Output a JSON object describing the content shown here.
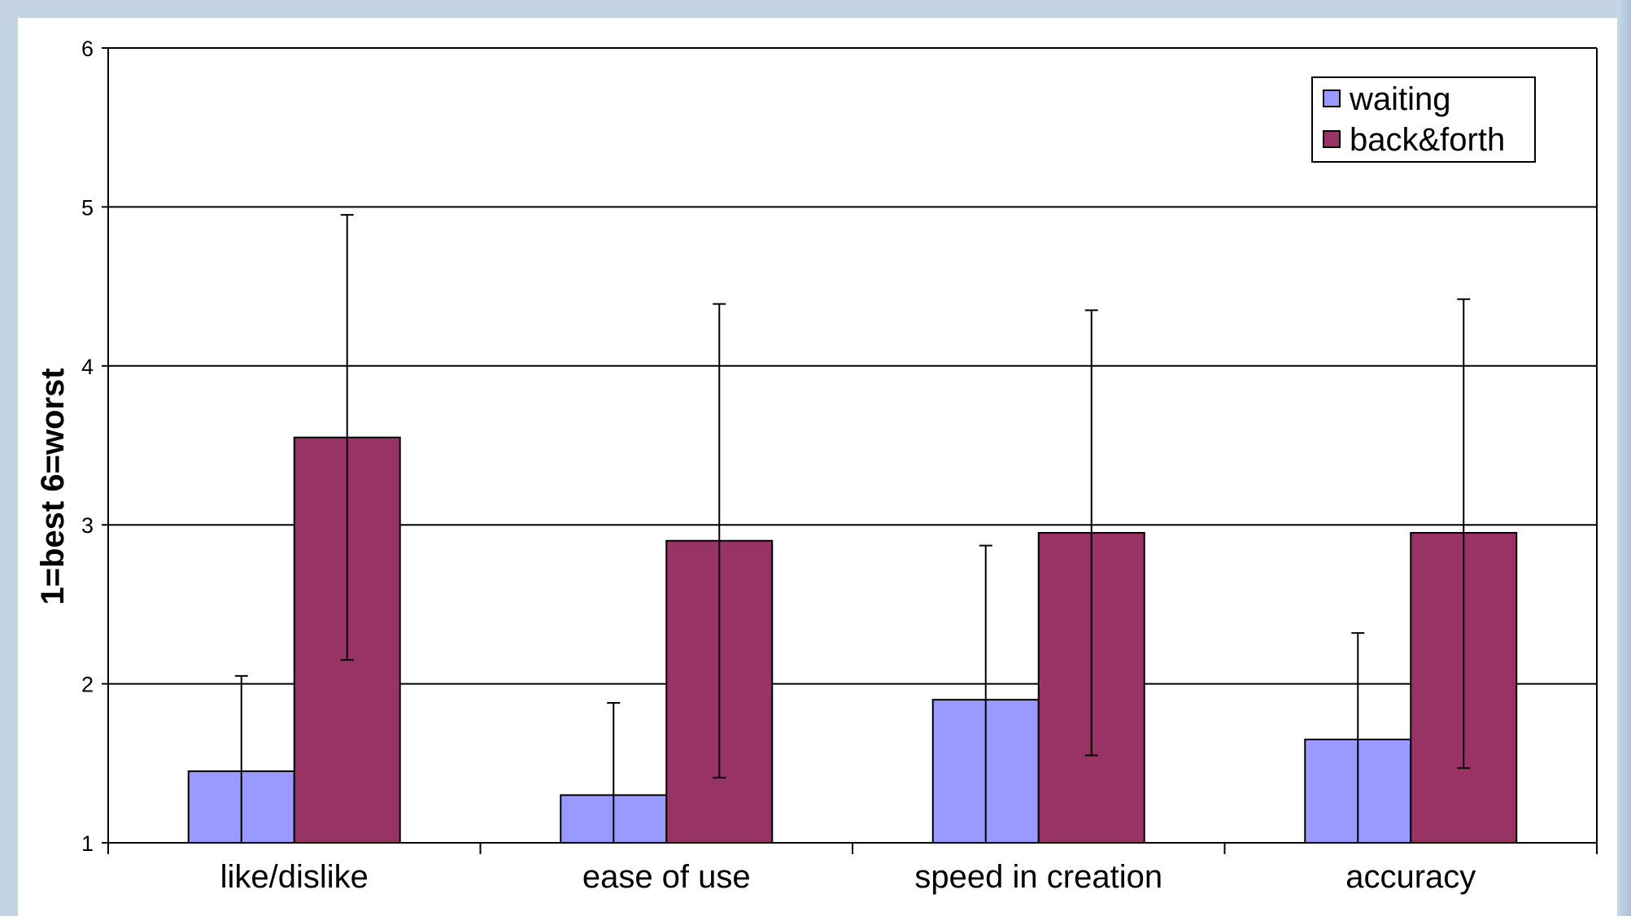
{
  "chart_data": {
    "type": "bar",
    "title": "",
    "xlabel": "",
    "ylabel": "1=best 6=worst",
    "ylim": [
      1,
      6
    ],
    "yticks": [
      1,
      2,
      3,
      4,
      5,
      6
    ],
    "grid": true,
    "legend_position": "top-right",
    "categories": [
      "like/dislike",
      "ease of use",
      "speed in creation",
      "accuracy"
    ],
    "series": [
      {
        "name": "waiting",
        "color": "#9999ff",
        "values": [
          1.45,
          1.3,
          1.9,
          1.65
        ],
        "error_high": [
          2.05,
          1.88,
          2.87,
          2.32
        ],
        "error_low": [
          1.0,
          1.0,
          1.0,
          1.0
        ]
      },
      {
        "name": "back&forth",
        "color": "#993366",
        "values": [
          3.55,
          2.9,
          2.95,
          2.95
        ],
        "error_high": [
          4.95,
          4.39,
          4.35,
          4.42
        ],
        "error_low": [
          2.15,
          1.41,
          1.55,
          1.47
        ]
      }
    ]
  }
}
